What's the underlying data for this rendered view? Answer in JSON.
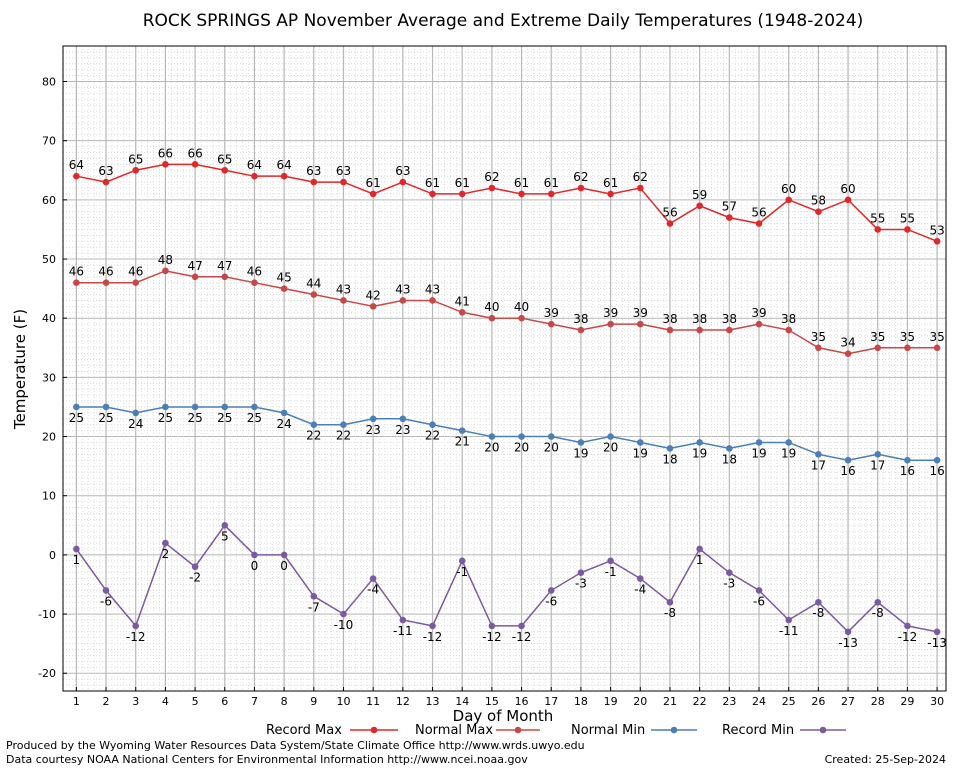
{
  "chart_data": {
    "type": "line",
    "title": "ROCK SPRINGS AP November Average and Extreme Daily Temperatures (1948-2024)",
    "xlabel": "Day of Month",
    "ylabel": "Temperature (F)",
    "x": [
      1,
      2,
      3,
      4,
      5,
      6,
      7,
      8,
      9,
      10,
      11,
      12,
      13,
      14,
      15,
      16,
      17,
      18,
      19,
      20,
      21,
      22,
      23,
      24,
      25,
      26,
      27,
      28,
      29,
      30
    ],
    "xlim": [
      0.55,
      30.3
    ],
    "ylim": [
      -23,
      86
    ],
    "yticks": [
      -20,
      -10,
      0,
      10,
      20,
      30,
      40,
      50,
      60,
      70,
      80
    ],
    "grid": true,
    "legend_position": "bottom",
    "series": [
      {
        "name": "Record Max",
        "color": "#e0282a",
        "label_side": "above",
        "values": [
          64,
          63,
          65,
          66,
          66,
          65,
          64,
          64,
          63,
          63,
          61,
          63,
          61,
          61,
          62,
          61,
          61,
          62,
          61,
          62,
          56,
          59,
          57,
          56,
          60,
          58,
          60,
          55,
          55,
          53
        ]
      },
      {
        "name": "Normal Max",
        "color": "#c84848",
        "label_side": "above",
        "values": [
          46,
          46,
          46,
          48,
          47,
          47,
          46,
          45,
          44,
          43,
          42,
          43,
          43,
          41,
          40,
          40,
          39,
          38,
          39,
          39,
          38,
          38,
          38,
          39,
          38,
          35,
          34,
          35,
          35,
          35
        ]
      },
      {
        "name": "Normal Min",
        "color": "#4a7fb8",
        "label_side": "below",
        "values": [
          25,
          25,
          24,
          25,
          25,
          25,
          25,
          24,
          22,
          22,
          23,
          23,
          22,
          21,
          20,
          20,
          20,
          19,
          20,
          19,
          18,
          19,
          18,
          19,
          19,
          17,
          16,
          17,
          16,
          16
        ]
      },
      {
        "name": "Record Min",
        "color": "#7a5aa0",
        "label_side": "below",
        "values": [
          1,
          -6,
          -12,
          2,
          -2,
          5,
          0,
          0,
          -7,
          -10,
          -4,
          -11,
          -12,
          -1,
          -12,
          -12,
          -6,
          -3,
          -1,
          -4,
          -8,
          1,
          -3,
          -6,
          -11,
          -8,
          -13,
          -8,
          -12,
          -13
        ]
      }
    ]
  },
  "footer": {
    "produced_by": "Produced by the Wyoming Water Resources Data System/State Climate Office http://www.wrds.uwyo.edu",
    "courtesy": "Data courtesy NOAA National Centers for Environmental Information http://www.ncei.noaa.gov",
    "created": "Created: 25-Sep-2024"
  }
}
